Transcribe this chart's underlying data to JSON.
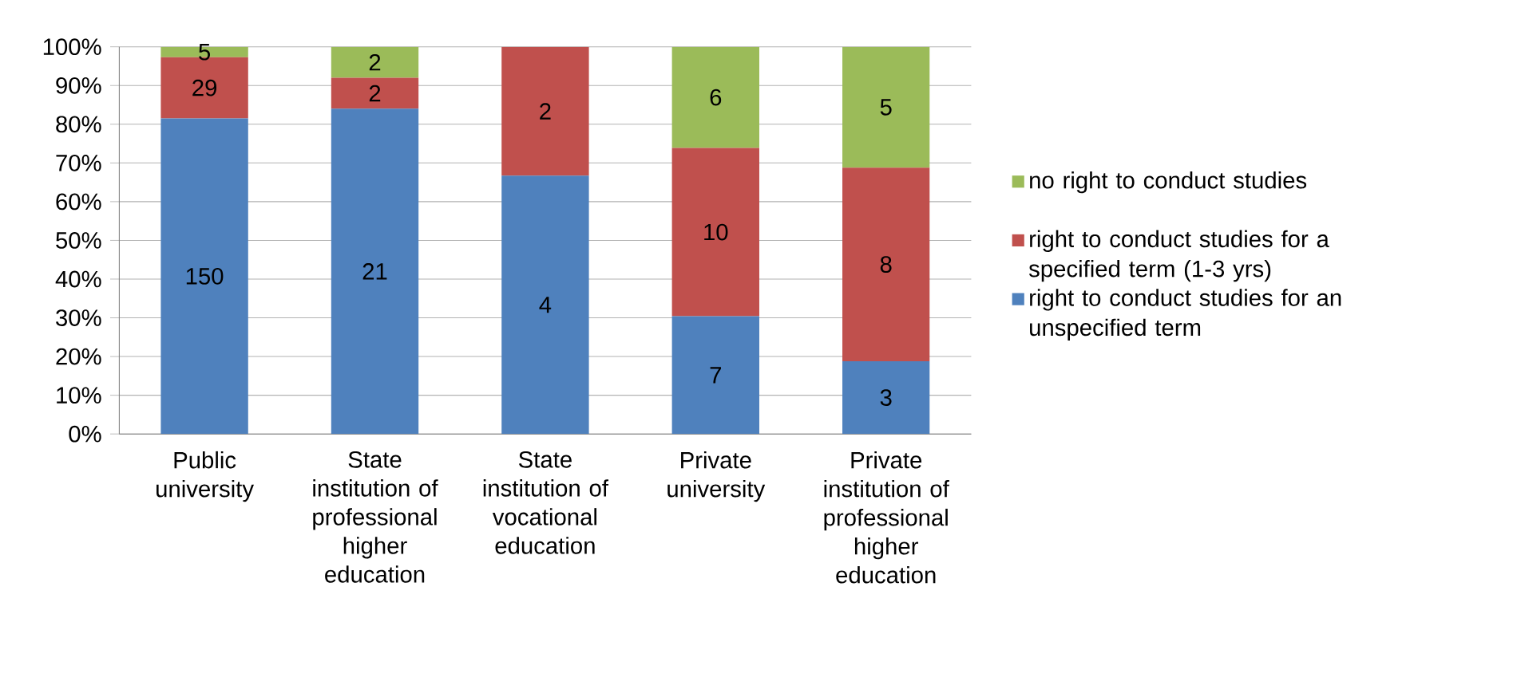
{
  "chart_data": {
    "type": "bar",
    "stacked": true,
    "categories": [
      "Public university",
      "State institution of professional higher education",
      "State institution of vocational education",
      "Private university",
      "Private institution of professional higher education"
    ],
    "series": [
      {
        "name": "right to conduct studies for an unspecified term",
        "color": "#4f81bd",
        "values": [
          81.5,
          84,
          66.7,
          30.4,
          18.8
        ]
      },
      {
        "name": "right to conduct studies for a specified term (1-3 yrs)",
        "color": "#c0504d",
        "values": [
          15.8,
          8,
          33.3,
          43.5,
          50
        ]
      },
      {
        "name": "no right to conduct studies",
        "color": "#9bbb59",
        "values": [
          2.7,
          8,
          0,
          26.1,
          31.2
        ]
      }
    ],
    "annotations": [
      "150",
      "21",
      "4",
      "7",
      "3",
      "29",
      "2",
      "2",
      "10",
      "8",
      "5",
      "2",
      "6",
      "5"
    ],
    "ylim": [
      0,
      100
    ],
    "yticks": [
      {
        "value": 0,
        "label": "0%"
      },
      {
        "value": 10,
        "label": "10%"
      },
      {
        "value": 20,
        "label": "20%"
      },
      {
        "value": 30,
        "label": "30%"
      },
      {
        "value": 40,
        "label": "40%"
      },
      {
        "value": 50,
        "label": "50%"
      },
      {
        "value": 60,
        "label": "60%"
      },
      {
        "value": 70,
        "label": "70%"
      },
      {
        "value": 80,
        "label": "80%"
      },
      {
        "value": 90,
        "label": "90%"
      },
      {
        "value": 100,
        "label": "100%"
      }
    ],
    "grid": "y",
    "legend": "right"
  }
}
